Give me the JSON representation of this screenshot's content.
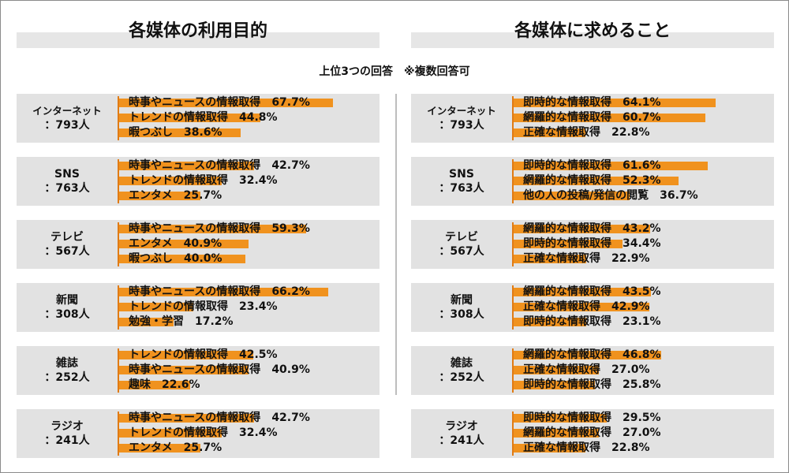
{
  "subtitle": "上位3つの回答　※複数回答可",
  "colors": {
    "bar": "#f0921e",
    "axis": "#e07b14",
    "group_bg": "#e2e2e2",
    "header_bar": "#e6e6e6"
  },
  "chart_data": [
    {
      "type": "bar",
      "title": "各媒体の利用目的",
      "groups": [
        {
          "label1": "インターネット",
          "label2": "：793人",
          "items": [
            {
              "text": "時事やニュースの情報取得",
              "pct": "67.7%",
              "value": 67.7
            },
            {
              "text": "トレンドの情報取得",
              "pct": "44.8%",
              "value": 44.8
            },
            {
              "text": "暇つぶし",
              "pct": "38.6%",
              "value": 38.6
            }
          ]
        },
        {
          "label1": "SNS",
          "label2": "：763人",
          "items": [
            {
              "text": "時事やニュースの情報取得",
              "pct": "42.7%",
              "value": 42.7
            },
            {
              "text": "トレンドの情報取得",
              "pct": "32.4%",
              "value": 32.4
            },
            {
              "text": "エンタメ",
              "pct": "25.7%",
              "value": 25.7
            }
          ]
        },
        {
          "label1": "テレビ",
          "label2": "：567人",
          "items": [
            {
              "text": "時事やニュースの情報取得",
              "pct": "59.3%",
              "value": 59.3
            },
            {
              "text": "エンタメ",
              "pct": "40.9%",
              "value": 40.9
            },
            {
              "text": "暇つぶし",
              "pct": "40.0%",
              "value": 40.0
            }
          ]
        },
        {
          "label1": "新聞",
          "label2": "：308人",
          "items": [
            {
              "text": "時事やニュースの情報取得",
              "pct": "66.2%",
              "value": 66.2
            },
            {
              "text": "トレンドの情報取得",
              "pct": "23.4%",
              "value": 23.4
            },
            {
              "text": "勉強・学習",
              "pct": "17.2%",
              "value": 17.2
            }
          ]
        },
        {
          "label1": "雑誌",
          "label2": "：252人",
          "items": [
            {
              "text": "トレンドの情報取得",
              "pct": "42.5%",
              "value": 42.5
            },
            {
              "text": "時事やニュースの情報取得",
              "pct": "40.9%",
              "value": 40.9
            },
            {
              "text": "趣味",
              "pct": "22.6%",
              "value": 22.6
            }
          ]
        },
        {
          "label1": "ラジオ",
          "label2": "：241人",
          "items": [
            {
              "text": "時事やニュースの情報取得",
              "pct": "42.7%",
              "value": 42.7
            },
            {
              "text": "トレンドの情報取得",
              "pct": "32.4%",
              "value": 32.4
            },
            {
              "text": "エンタメ",
              "pct": "25.7%",
              "value": 25.7
            }
          ]
        }
      ]
    },
    {
      "type": "bar",
      "title": "各媒体に求めること",
      "groups": [
        {
          "label1": "インターネット",
          "label2": "：793人",
          "items": [
            {
              "text": "即時的な情報取得",
              "pct": "64.1%",
              "value": 64.1
            },
            {
              "text": "網羅的な情報取得",
              "pct": "60.7%",
              "value": 60.7
            },
            {
              "text": "正確な情報取得",
              "pct": "22.8%",
              "value": 22.8
            }
          ]
        },
        {
          "label1": "SNS",
          "label2": "：763人",
          "items": [
            {
              "text": "即時的な情報取得",
              "pct": "61.6%",
              "value": 61.6
            },
            {
              "text": "網羅的な情報取得",
              "pct": "52.3%",
              "value": 52.3
            },
            {
              "text": "他の人の投稿/発信の閲覧",
              "pct": "36.7%",
              "value": 36.7
            }
          ]
        },
        {
          "label1": "テレビ",
          "label2": "：567人",
          "items": [
            {
              "text": "網羅的な情報取得",
              "pct": "43.2%",
              "value": 43.2
            },
            {
              "text": "即時的な情報取得",
              "pct": "34.4%",
              "value": 34.4
            },
            {
              "text": "正確な情報取得",
              "pct": "22.9%",
              "value": 22.9
            }
          ]
        },
        {
          "label1": "新聞",
          "label2": "：308人",
          "items": [
            {
              "text": "網羅的な情報取得",
              "pct": "43.5%",
              "value": 43.5
            },
            {
              "text": "正確な情報取得",
              "pct": "42.9%",
              "value": 42.9
            },
            {
              "text": "即時的な情報取得",
              "pct": "23.1%",
              "value": 23.1
            }
          ]
        },
        {
          "label1": "雑誌",
          "label2": "：252人",
          "items": [
            {
              "text": "網羅的な情報取得",
              "pct": "46.8%",
              "value": 46.8
            },
            {
              "text": "正確な情報取得",
              "pct": "27.0%",
              "value": 27.0
            },
            {
              "text": "即時的な情報取得",
              "pct": "25.8%",
              "value": 25.8
            }
          ]
        },
        {
          "label1": "ラジオ",
          "label2": "：241人",
          "items": [
            {
              "text": "即時的な情報取得",
              "pct": "29.5%",
              "value": 29.5
            },
            {
              "text": "網羅的な情報取得",
              "pct": "27.0%",
              "value": 27.0
            },
            {
              "text": "正確な情報取得",
              "pct": "22.8%",
              "value": 22.8
            }
          ]
        }
      ]
    }
  ]
}
